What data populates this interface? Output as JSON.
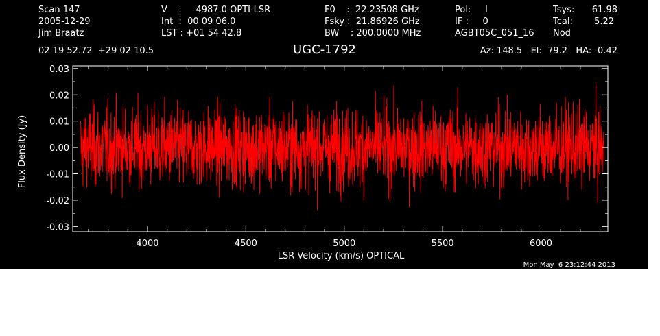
{
  "header": {
    "col1": [
      "Scan        147",
      "2005-12-29",
      "Jim Braatz"
    ],
    "col2": [
      "V    :     4987.0 OPTI-LSR",
      "Int  :  00 09 06.0",
      "LST : +01 54 42.8"
    ],
    "col3": [
      "F0    :  22.23508 GHz",
      "Fsky :  21.86926 GHz",
      "BW    : 200.0000 MHz"
    ],
    "col4": [
      "Pol:     I",
      "IF :     0",
      "AGBT05C_051_16"
    ],
    "col5_labels": [
      "Tsys:",
      "Tcal:",
      "Nod"
    ],
    "col5_values": [
      "61.98",
      "5.22",
      ""
    ],
    "coords": "02 19 52.72  +29 02 10.5",
    "source": "UGC-1792",
    "pointing": "Az: 148.5   El:  79.2   HA: -0.42"
  },
  "timestamp": "Mon May  6 23:12:44 2013",
  "colors": {
    "background": "#000000",
    "trace": "#ff0000",
    "axes": "#ffffff"
  },
  "chart_data": {
    "type": "line",
    "title": "UGC-1792",
    "xlabel": "LSR Velocity (km/s) OPTICAL",
    "ylabel": "Flux Density (Jy)",
    "xlim": [
      3620,
      6340
    ],
    "ylim": [
      -0.032,
      0.031
    ],
    "xticks": [
      4000,
      4500,
      5000,
      5500,
      6000
    ],
    "xtick_labels": [
      "4000",
      "4500",
      "5000",
      "5500",
      "6000"
    ],
    "yticks": [
      -0.03,
      -0.02,
      -0.01,
      0.0,
      0.01,
      0.02,
      0.03
    ],
    "ytick_labels": [
      "-0.03",
      "-0.02",
      "-0.01",
      "0.00",
      "0.01",
      "0.02",
      "0.03"
    ],
    "grid": false,
    "series": [
      {
        "x_start": 3660,
        "x_end": 6320,
        "rms": 0.0075,
        "description_values": {
          "min": -0.028,
          "max": 0.028,
          "mean": 0.0
        }
      }
    ]
  }
}
